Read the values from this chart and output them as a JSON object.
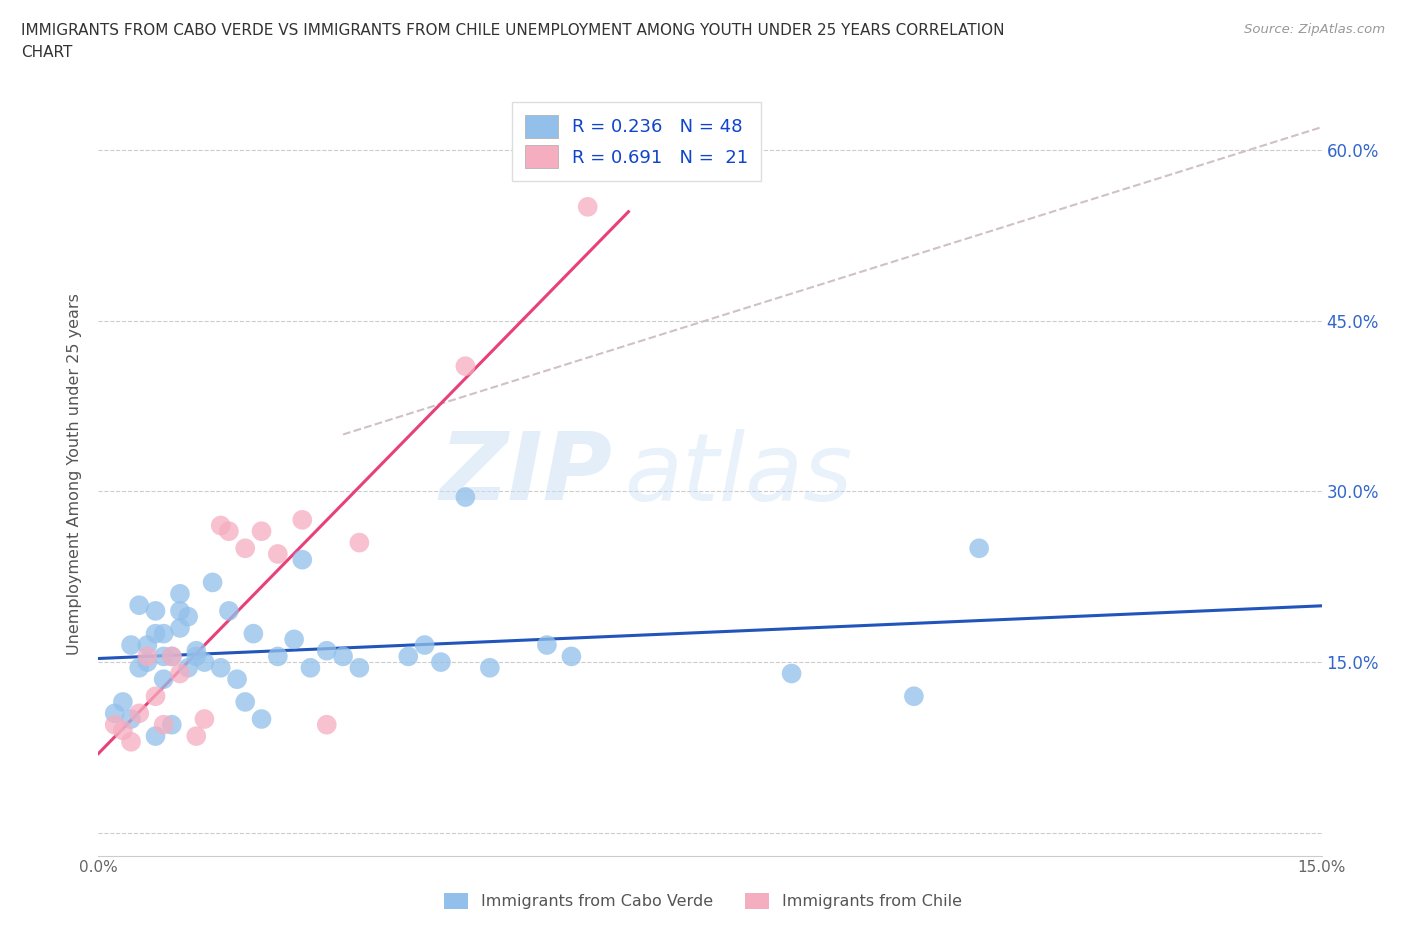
{
  "title_line1": "IMMIGRANTS FROM CABO VERDE VS IMMIGRANTS FROM CHILE UNEMPLOYMENT AMONG YOUTH UNDER 25 YEARS CORRELATION",
  "title_line2": "CHART",
  "source": "Source: ZipAtlas.com",
  "ylabel": "Unemployment Among Youth under 25 years",
  "xlim": [
    0.0,
    0.15
  ],
  "ylim": [
    -0.02,
    0.65
  ],
  "xticks": [
    0.0,
    0.05,
    0.1,
    0.15
  ],
  "xtick_labels": [
    "0.0%",
    "",
    "",
    "15.0%"
  ],
  "yticks": [
    0.0,
    0.15,
    0.3,
    0.45,
    0.6
  ],
  "ytick_labels": [
    "",
    "15.0%",
    "30.0%",
    "45.0%",
    "60.0%"
  ],
  "cabo_verde_color": "#92c0ea",
  "chile_color": "#f5adc0",
  "cabo_verde_line_color": "#2255bb",
  "chile_line_color": "#e8407a",
  "trendline_dash_color": "#d0c0c8",
  "watermark_zip": "ZIP",
  "watermark_atlas": "atlas",
  "legend_label1": "R = 0.236   N = 48",
  "legend_label2": "R = 0.691   N =  21",
  "cabo_legend": "Immigrants from Cabo Verde",
  "chile_legend": "Immigrants from Chile",
  "cabo_verde_x": [
    0.002,
    0.003,
    0.004,
    0.004,
    0.005,
    0.005,
    0.006,
    0.006,
    0.007,
    0.007,
    0.007,
    0.008,
    0.008,
    0.008,
    0.009,
    0.009,
    0.01,
    0.01,
    0.01,
    0.011,
    0.011,
    0.012,
    0.012,
    0.013,
    0.014,
    0.015,
    0.016,
    0.017,
    0.018,
    0.019,
    0.02,
    0.022,
    0.024,
    0.025,
    0.026,
    0.028,
    0.03,
    0.032,
    0.038,
    0.04,
    0.042,
    0.045,
    0.048,
    0.055,
    0.058,
    0.085,
    0.1,
    0.108
  ],
  "cabo_verde_y": [
    0.105,
    0.115,
    0.165,
    0.1,
    0.145,
    0.2,
    0.15,
    0.165,
    0.085,
    0.175,
    0.195,
    0.135,
    0.155,
    0.175,
    0.095,
    0.155,
    0.18,
    0.195,
    0.21,
    0.145,
    0.19,
    0.155,
    0.16,
    0.15,
    0.22,
    0.145,
    0.195,
    0.135,
    0.115,
    0.175,
    0.1,
    0.155,
    0.17,
    0.24,
    0.145,
    0.16,
    0.155,
    0.145,
    0.155,
    0.165,
    0.15,
    0.295,
    0.145,
    0.165,
    0.155,
    0.14,
    0.12,
    0.25
  ],
  "chile_x": [
    0.002,
    0.003,
    0.004,
    0.005,
    0.006,
    0.007,
    0.008,
    0.009,
    0.01,
    0.012,
    0.013,
    0.015,
    0.016,
    0.018,
    0.02,
    0.022,
    0.025,
    0.028,
    0.032,
    0.045,
    0.06
  ],
  "chile_y": [
    0.095,
    0.09,
    0.08,
    0.105,
    0.155,
    0.12,
    0.095,
    0.155,
    0.14,
    0.085,
    0.1,
    0.27,
    0.265,
    0.25,
    0.265,
    0.245,
    0.275,
    0.095,
    0.255,
    0.41,
    0.55
  ]
}
